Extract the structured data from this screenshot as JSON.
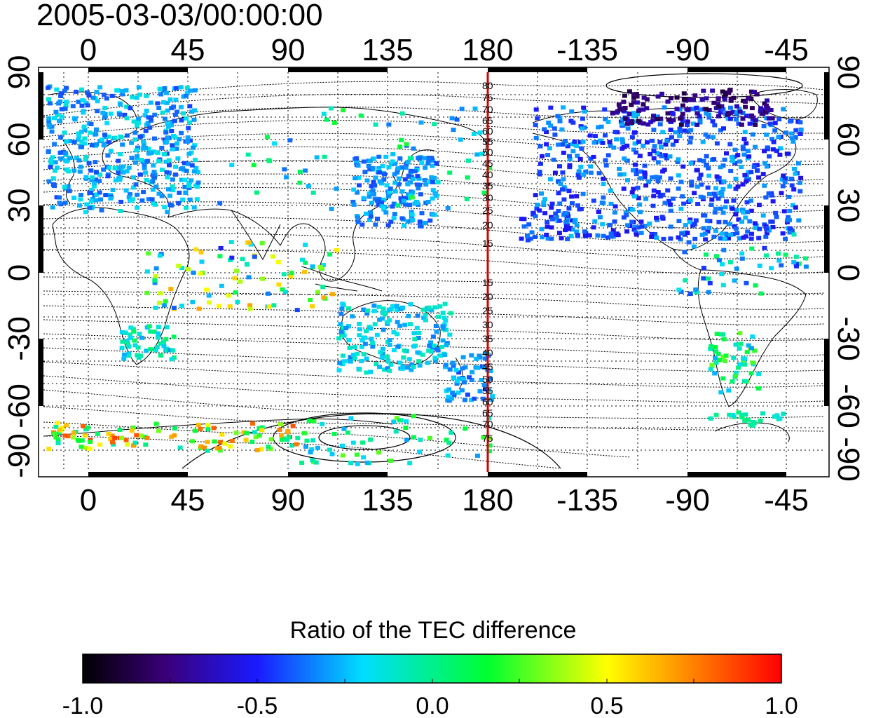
{
  "map": {
    "title": "2005-03-03/00:00:00",
    "top_lon_ticks": [
      "0",
      "45",
      "90",
      "135",
      "180",
      "-135",
      "-90",
      "-45"
    ],
    "bottom_lon_ticks": [
      "0",
      "45",
      "90",
      "135",
      "180",
      "-135",
      "-90",
      "-45"
    ],
    "left_lat_ticks": [
      "90",
      "60",
      "30",
      "0",
      "-30",
      "-60",
      "-90"
    ],
    "right_lat_ticks": [
      "90",
      "60",
      "30",
      "0",
      "-30",
      "-60",
      "-90"
    ],
    "meridian_labels_north": [
      "80",
      "75",
      "70",
      "65",
      "60",
      "55",
      "50",
      "45",
      "40",
      "35",
      "30",
      "25",
      "20",
      "15"
    ],
    "meridian_labels_south": [
      "15",
      "20",
      "25",
      "30",
      "35",
      "40",
      "45",
      "50",
      "55",
      "60",
      "65",
      "70",
      "75"
    ],
    "highlight_meridian_color": "#d40000"
  },
  "colorbar": {
    "title": "Ratio of the TEC difference",
    "ticks": [
      "-1.0",
      "-0.5",
      "0.0",
      "0.5",
      "1.0"
    ],
    "min": -1.0,
    "max": 1.0,
    "stops": [
      "#000000",
      "#3a007a",
      "#1a1aff",
      "#00ddff",
      "#00ff30",
      "#ffff00",
      "#ff0000"
    ]
  }
}
